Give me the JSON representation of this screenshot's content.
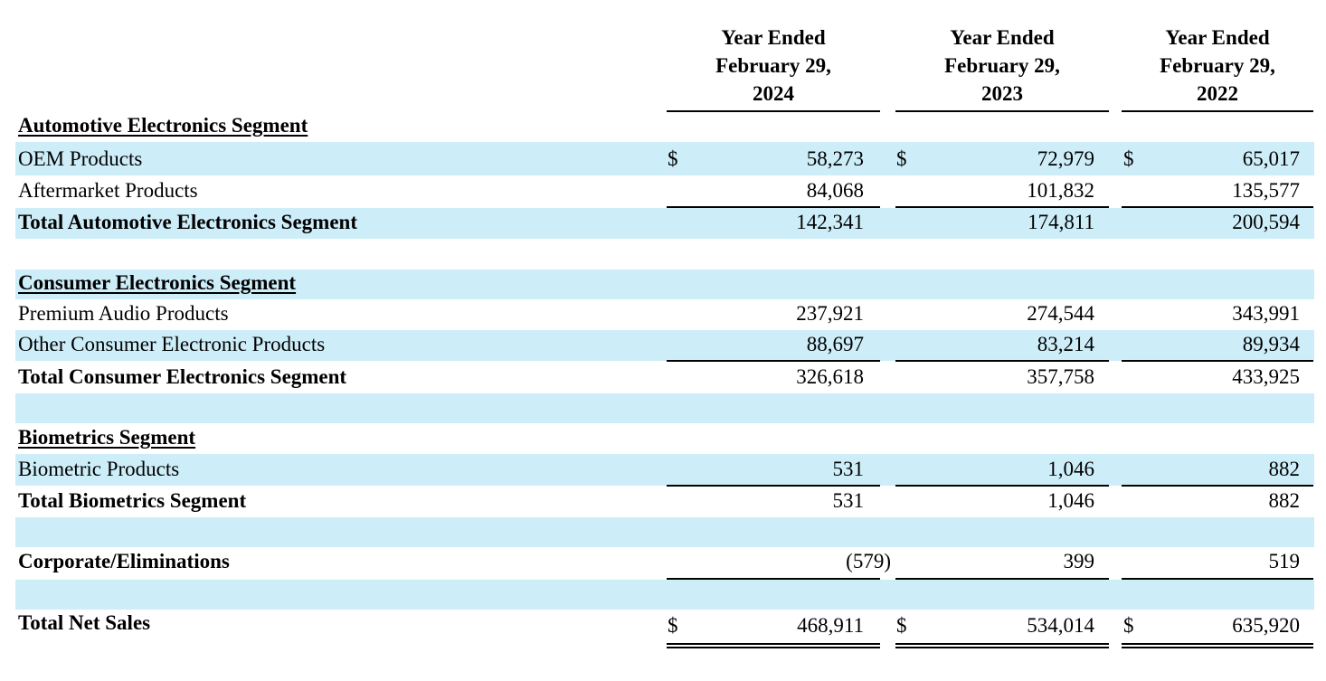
{
  "columns": [
    {
      "line1": "Year Ended",
      "line2": "February 29,",
      "line3": "2024"
    },
    {
      "line1": "Year Ended",
      "line2": "February 29,",
      "line3": "2023"
    },
    {
      "line1": "Year Ended",
      "line2": "February 29,",
      "line3": "2022"
    }
  ],
  "currency_symbol": "$",
  "rows": {
    "auto_header": {
      "label": "Automotive Electronics Segment"
    },
    "oem": {
      "label": "OEM Products",
      "values": [
        "58,273",
        "72,979",
        "65,017"
      ]
    },
    "aftermarket": {
      "label": "Aftermarket Products",
      "values": [
        "84,068",
        "101,832",
        "135,577"
      ]
    },
    "auto_total": {
      "label": "Total Automotive Electronics Segment",
      "values": [
        "142,341",
        "174,811",
        "200,594"
      ]
    },
    "consumer_header": {
      "label": "Consumer Electronics Segment"
    },
    "premium_audio": {
      "label": "Premium Audio Products",
      "values": [
        "237,921",
        "274,544",
        "343,991"
      ]
    },
    "other_consumer": {
      "label": "Other Consumer Electronic Products",
      "values": [
        "88,697",
        "83,214",
        "89,934"
      ]
    },
    "consumer_total": {
      "label": "Total Consumer Electronics Segment",
      "values": [
        "326,618",
        "357,758",
        "433,925"
      ]
    },
    "bio_header": {
      "label": "Biometrics Segment"
    },
    "bio_products": {
      "label": "Biometric Products",
      "values": [
        "531",
        "1,046",
        "882"
      ]
    },
    "bio_total": {
      "label": "Total Biometrics Segment",
      "values": [
        "531",
        "1,046",
        "882"
      ]
    },
    "corporate": {
      "label": "Corporate/Eliminations",
      "values": [
        "(579)",
        "399",
        "519"
      ]
    },
    "net_sales": {
      "label": "Total Net Sales",
      "values": [
        "468,911",
        "534,014",
        "635,920"
      ]
    }
  },
  "colors": {
    "shade": "#cdeef9",
    "text": "#000000"
  }
}
